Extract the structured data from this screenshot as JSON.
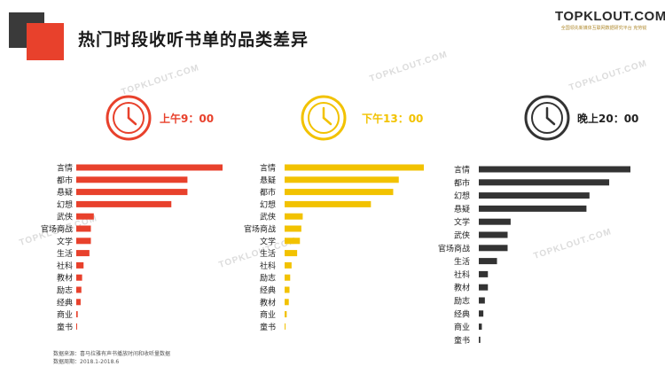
{
  "page": {
    "title": "热门时段收听书单的品类差异",
    "brand": {
      "name": "TOPKLOUT.COM",
      "subtitle": "全国领先新媒体互联网数据研究平台 克劳锐"
    },
    "watermark": "TOPKLOUT.COM",
    "footer": {
      "source": "数据来源：喜马拉雅有声书播放时间和收听量数据",
      "period": "数据周期：2018.1-2018.6"
    }
  },
  "chart_data": [
    {
      "type": "bar",
      "orientation": "horizontal",
      "label": "上午9：00",
      "color": "#e8412c",
      "categories": [
        "言情",
        "都市",
        "悬疑",
        "幻想",
        "武侠",
        "官场商战",
        "文学",
        "生活",
        "社科",
        "教材",
        "励志",
        "经典",
        "商业",
        "童书"
      ],
      "values": [
        100,
        76,
        76,
        65,
        12,
        10,
        10,
        9,
        5,
        4,
        3.5,
        3,
        1,
        0.5
      ]
    },
    {
      "type": "bar",
      "orientation": "horizontal",
      "label": "下午13：00",
      "color": "#f2c200",
      "categories": [
        "言情",
        "悬疑",
        "都市",
        "幻想",
        "武侠",
        "官场商战",
        "文学",
        "生活",
        "社科",
        "励志",
        "经典",
        "教材",
        "商业",
        "童书"
      ],
      "values": [
        100,
        82,
        78,
        62,
        13,
        12,
        11,
        9,
        5,
        4,
        3.5,
        3,
        1.5,
        0.5
      ]
    },
    {
      "type": "bar",
      "orientation": "horizontal",
      "label": "晚上20：00",
      "color": "#333333",
      "categories": [
        "言情",
        "都市",
        "幻想",
        "悬疑",
        "文学",
        "武侠",
        "官场商战",
        "生活",
        "社科",
        "教材",
        "励志",
        "经典",
        "商业",
        "童书"
      ],
      "values": [
        100,
        86,
        73,
        71,
        21,
        19,
        19,
        12,
        6,
        6,
        4,
        3,
        2,
        1
      ]
    }
  ]
}
